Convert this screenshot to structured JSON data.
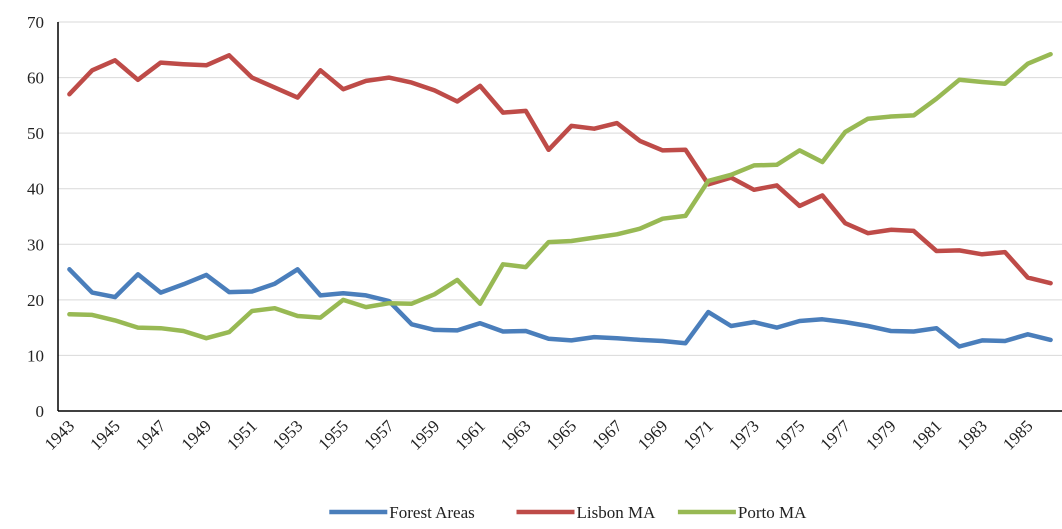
{
  "chart_data": {
    "type": "line",
    "categories": [
      "1943",
      null,
      "1945",
      null,
      "1947",
      null,
      "1949",
      null,
      "1951",
      null,
      "1953",
      null,
      "1955",
      null,
      "1957",
      null,
      "1959",
      null,
      "1961",
      null,
      "1963",
      null,
      "1965",
      null,
      "1967",
      null,
      "1969",
      null,
      "1971",
      null,
      "1973",
      null,
      "1975",
      null,
      "1977",
      null,
      "1979",
      null,
      "1981",
      null,
      "1983",
      null,
      "1985",
      null
    ],
    "series": [
      {
        "name": "Forest Areas",
        "color": "#4a7ebb",
        "values": [
          25.5,
          21.3,
          20.5,
          24.6,
          21.3,
          22.8,
          24.5,
          21.4,
          21.5,
          22.9,
          25.5,
          20.8,
          21.2,
          20.8,
          19.8,
          15.6,
          14.6,
          14.5,
          15.8,
          14.3,
          14.4,
          13.0,
          12.7,
          13.3,
          13.1,
          12.8,
          12.6,
          12.2,
          17.8,
          15.3,
          16.0,
          15.0,
          16.2,
          16.5,
          16.0,
          15.3,
          14.4,
          14.3,
          14.9,
          11.6,
          12.7,
          12.6,
          13.8,
          12.8
        ]
      },
      {
        "name": "Lisbon MA",
        "color": "#be4b48",
        "values": [
          57.0,
          61.3,
          63.1,
          59.6,
          62.7,
          62.4,
          62.2,
          64.0,
          60.0,
          58.2,
          56.4,
          61.3,
          57.9,
          59.4,
          60.0,
          59.1,
          57.7,
          55.7,
          58.5,
          53.7,
          54.0,
          47.0,
          51.3,
          50.8,
          51.8,
          48.6,
          46.9,
          47.0,
          40.8,
          42.0,
          39.8,
          40.6,
          36.9,
          38.8,
          33.8,
          32.0,
          32.6,
          32.4,
          28.8,
          28.9,
          28.2,
          28.6,
          24.0,
          23.0
        ]
      },
      {
        "name": "Porto MA",
        "color": "#98b954",
        "values": [
          17.4,
          17.3,
          16.3,
          15.0,
          14.9,
          14.4,
          13.1,
          14.2,
          18.0,
          18.5,
          17.1,
          16.8,
          20.0,
          18.7,
          19.4,
          19.3,
          21.0,
          23.6,
          19.3,
          26.4,
          25.9,
          30.4,
          30.6,
          31.2,
          31.8,
          32.8,
          34.6,
          35.1,
          41.4,
          42.5,
          44.2,
          44.3,
          46.9,
          44.8,
          50.2,
          52.6,
          53.0,
          53.2,
          56.2,
          59.6,
          59.2,
          58.9,
          62.5,
          64.2
        ]
      }
    ],
    "ylim": [
      0,
      70
    ],
    "yticks": [
      0,
      10,
      20,
      30,
      40,
      50,
      60,
      70
    ],
    "grid": true,
    "legend": "bottom"
  }
}
